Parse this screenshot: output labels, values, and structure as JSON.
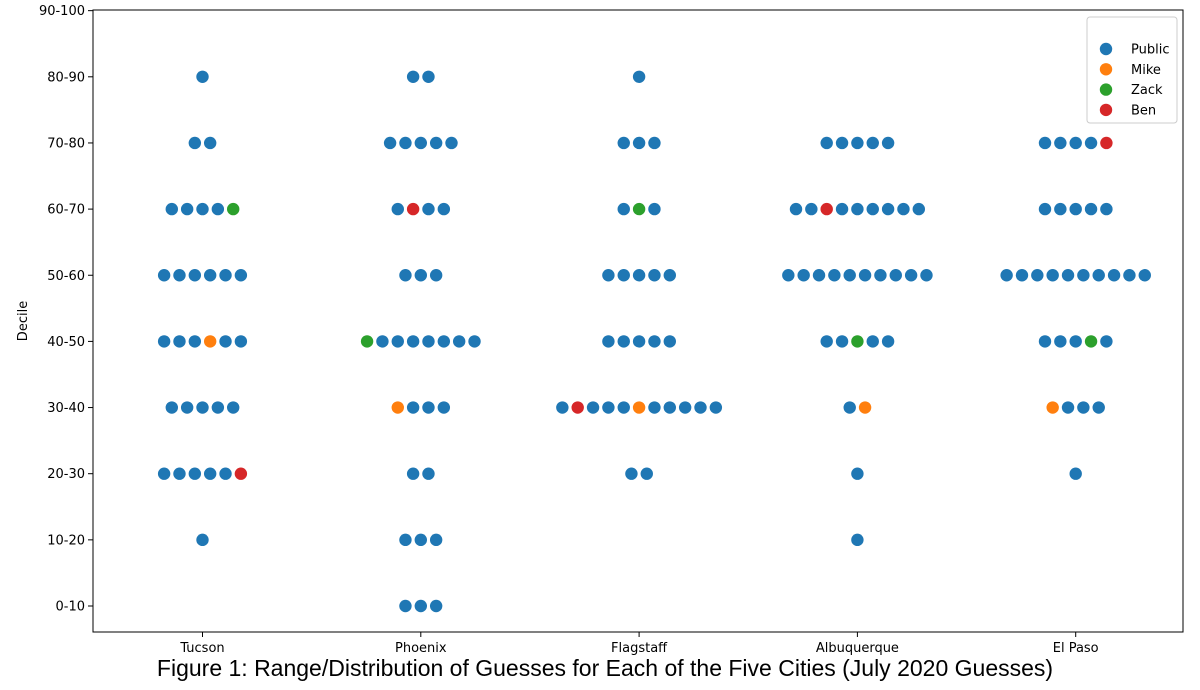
{
  "caption": "Figure 1: Range/Distribution of Guesses for Each of the Five Cities (July 2020 Guesses)",
  "chart_data": {
    "type": "scatter",
    "title": "",
    "xlabel": "",
    "ylabel": "Decile",
    "categories": [
      "Tucson",
      "Phoenix",
      "Flagstaff",
      "Albuquerque",
      "El Paso"
    ],
    "y_ticks": [
      "0-10",
      "10-20",
      "20-30",
      "30-40",
      "40-50",
      "50-60",
      "60-70",
      "70-80",
      "80-90",
      "90-100"
    ],
    "legend_position": "top-right",
    "legend": [
      {
        "name": "Public",
        "color": "#1f77b4"
      },
      {
        "name": "Mike",
        "color": "#ff7f0e"
      },
      {
        "name": "Zack",
        "color": "#2ca02c"
      },
      {
        "name": "Ben",
        "color": "#d62728"
      }
    ],
    "points": [
      {
        "city": "Tucson",
        "decile": "80-90",
        "guessers": [
          "Public"
        ]
      },
      {
        "city": "Tucson",
        "decile": "70-80",
        "guessers": [
          "Public",
          "Public"
        ]
      },
      {
        "city": "Tucson",
        "decile": "60-70",
        "guessers": [
          "Public",
          "Public",
          "Public",
          "Public",
          "Zack"
        ]
      },
      {
        "city": "Tucson",
        "decile": "50-60",
        "guessers": [
          "Public",
          "Public",
          "Public",
          "Public",
          "Public",
          "Public"
        ]
      },
      {
        "city": "Tucson",
        "decile": "40-50",
        "guessers": [
          "Public",
          "Public",
          "Public",
          "Mike",
          "Public",
          "Public"
        ]
      },
      {
        "city": "Tucson",
        "decile": "30-40",
        "guessers": [
          "Public",
          "Public",
          "Public",
          "Public",
          "Public"
        ]
      },
      {
        "city": "Tucson",
        "decile": "20-30",
        "guessers": [
          "Public",
          "Public",
          "Public",
          "Public",
          "Public",
          "Ben"
        ]
      },
      {
        "city": "Tucson",
        "decile": "10-20",
        "guessers": [
          "Public"
        ]
      },
      {
        "city": "Phoenix",
        "decile": "80-90",
        "guessers": [
          "Public",
          "Public"
        ]
      },
      {
        "city": "Phoenix",
        "decile": "70-80",
        "guessers": [
          "Public",
          "Public",
          "Public",
          "Public",
          "Public"
        ]
      },
      {
        "city": "Phoenix",
        "decile": "60-70",
        "guessers": [
          "Public",
          "Ben",
          "Public",
          "Public"
        ]
      },
      {
        "city": "Phoenix",
        "decile": "50-60",
        "guessers": [
          "Public",
          "Public",
          "Public"
        ]
      },
      {
        "city": "Phoenix",
        "decile": "40-50",
        "guessers": [
          "Zack",
          "Public",
          "Public",
          "Public",
          "Public",
          "Public",
          "Public",
          "Public"
        ]
      },
      {
        "city": "Phoenix",
        "decile": "30-40",
        "guessers": [
          "Mike",
          "Public",
          "Public",
          "Public"
        ]
      },
      {
        "city": "Phoenix",
        "decile": "20-30",
        "guessers": [
          "Public",
          "Public"
        ]
      },
      {
        "city": "Phoenix",
        "decile": "10-20",
        "guessers": [
          "Public",
          "Public",
          "Public"
        ]
      },
      {
        "city": "Phoenix",
        "decile": "0-10",
        "guessers": [
          "Public",
          "Public",
          "Public"
        ]
      },
      {
        "city": "Flagstaff",
        "decile": "80-90",
        "guessers": [
          "Public"
        ]
      },
      {
        "city": "Flagstaff",
        "decile": "70-80",
        "guessers": [
          "Public",
          "Public",
          "Public"
        ]
      },
      {
        "city": "Flagstaff",
        "decile": "60-70",
        "guessers": [
          "Public",
          "Zack",
          "Public"
        ]
      },
      {
        "city": "Flagstaff",
        "decile": "50-60",
        "guessers": [
          "Public",
          "Public",
          "Public",
          "Public",
          "Public"
        ]
      },
      {
        "city": "Flagstaff",
        "decile": "40-50",
        "guessers": [
          "Public",
          "Public",
          "Public",
          "Public",
          "Public"
        ]
      },
      {
        "city": "Flagstaff",
        "decile": "30-40",
        "guessers": [
          "Public",
          "Ben",
          "Public",
          "Public",
          "Public",
          "Mike",
          "Public",
          "Public",
          "Public",
          "Public",
          "Public"
        ]
      },
      {
        "city": "Flagstaff",
        "decile": "20-30",
        "guessers": [
          "Public",
          "Public"
        ]
      },
      {
        "city": "Albuquerque",
        "decile": "70-80",
        "guessers": [
          "Public",
          "Public",
          "Public",
          "Public",
          "Public"
        ]
      },
      {
        "city": "Albuquerque",
        "decile": "60-70",
        "guessers": [
          "Public",
          "Public",
          "Ben",
          "Public",
          "Public",
          "Public",
          "Public",
          "Public",
          "Public"
        ]
      },
      {
        "city": "Albuquerque",
        "decile": "50-60",
        "guessers": [
          "Public",
          "Public",
          "Public",
          "Public",
          "Public",
          "Public",
          "Public",
          "Public",
          "Public",
          "Public"
        ]
      },
      {
        "city": "Albuquerque",
        "decile": "40-50",
        "guessers": [
          "Public",
          "Public",
          "Zack",
          "Public",
          "Public"
        ]
      },
      {
        "city": "Albuquerque",
        "decile": "30-40",
        "guessers": [
          "Public",
          "Mike"
        ]
      },
      {
        "city": "Albuquerque",
        "decile": "20-30",
        "guessers": [
          "Public"
        ]
      },
      {
        "city": "Albuquerque",
        "decile": "10-20",
        "guessers": [
          "Public"
        ]
      },
      {
        "city": "El Paso",
        "decile": "70-80",
        "guessers": [
          "Public",
          "Public",
          "Public",
          "Public",
          "Ben"
        ]
      },
      {
        "city": "El Paso",
        "decile": "60-70",
        "guessers": [
          "Public",
          "Public",
          "Public",
          "Public",
          "Public"
        ]
      },
      {
        "city": "El Paso",
        "decile": "50-60",
        "guessers": [
          "Public",
          "Public",
          "Public",
          "Public",
          "Public",
          "Public",
          "Public",
          "Public",
          "Public",
          "Public"
        ]
      },
      {
        "city": "El Paso",
        "decile": "40-50",
        "guessers": [
          "Public",
          "Public",
          "Public",
          "Zack",
          "Public"
        ]
      },
      {
        "city": "El Paso",
        "decile": "30-40",
        "guessers": [
          "Mike",
          "Public",
          "Public",
          "Public"
        ]
      },
      {
        "city": "El Paso",
        "decile": "20-30",
        "guessers": [
          "Public"
        ]
      }
    ]
  }
}
